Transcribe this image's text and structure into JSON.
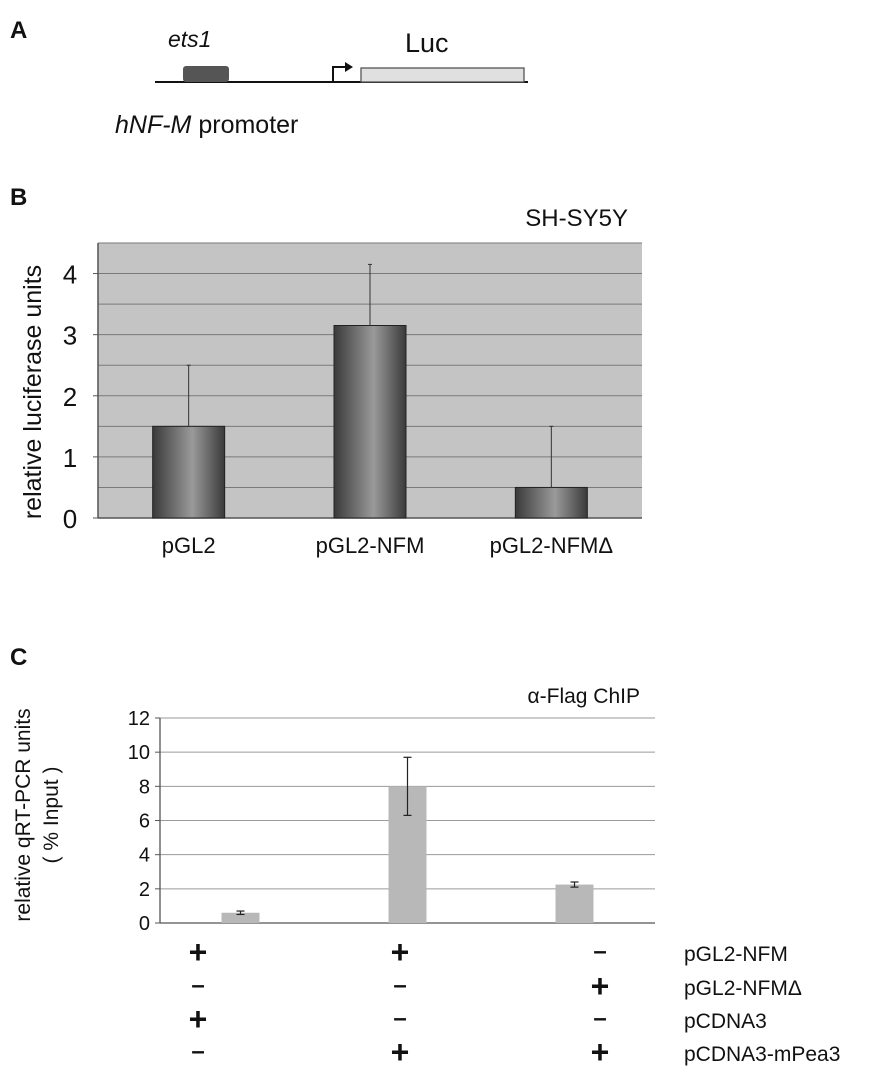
{
  "panel_labels": {
    "a": "A",
    "b": "B",
    "c": "C"
  },
  "panel_a": {
    "element_label": "ets1",
    "reporter_label": "Luc",
    "promoter_label_italic": "hNF-M",
    "promoter_label_rest": " promoter",
    "colors": {
      "element_box": "#555555",
      "reporter_box": "#e0e0e0"
    }
  },
  "chart_data": [
    {
      "type": "bar",
      "title": "SH-SY5Y",
      "ylabel": "relative luciferase units",
      "categories": [
        "pGL2",
        "pGL2-NFM",
        "pGL2-NFMΔ"
      ],
      "values": [
        1.5,
        3.15,
        0.5
      ],
      "error_upper": [
        1.0,
        1.0,
        1.0
      ],
      "ylim": [
        0,
        4.5
      ],
      "yticks": [
        0,
        1,
        2,
        3,
        4
      ],
      "ytick_labels": [
        "0",
        "1",
        "2",
        "3",
        "4"
      ],
      "grid": true,
      "grid_step": 0.5,
      "colors": {
        "plot_bg": "#c4c4c4",
        "bar_dark": "#3a3a3a",
        "bar_light": "#9a9a9a"
      }
    },
    {
      "type": "bar",
      "title": "α-Flag ChIP",
      "ylabel_line1": "relative qRT-PCR units",
      "ylabel_line2": "( % Input )",
      "values": [
        0.6,
        8.0,
        2.25
      ],
      "error": [
        0.1,
        1.7,
        0.15
      ],
      "ylim": [
        0,
        12
      ],
      "yticks": [
        0,
        2,
        4,
        6,
        8,
        10,
        12
      ],
      "ytick_labels": [
        "0",
        "2",
        "4",
        "6",
        "8",
        "10",
        "12"
      ],
      "grid": true,
      "condition_rows": [
        {
          "label": "pGL2-NFM",
          "marks": [
            "+",
            "+",
            "–"
          ]
        },
        {
          "label": "pGL2-NFMΔ",
          "marks": [
            "–",
            "–",
            "+"
          ]
        },
        {
          "label": "pCDNA3",
          "marks": [
            "+",
            "–",
            "–"
          ]
        },
        {
          "label": "pCDNA3-mPea3",
          "marks": [
            "–",
            "+",
            "+"
          ]
        }
      ],
      "colors": {
        "bar": "#b8b8b8"
      }
    }
  ]
}
